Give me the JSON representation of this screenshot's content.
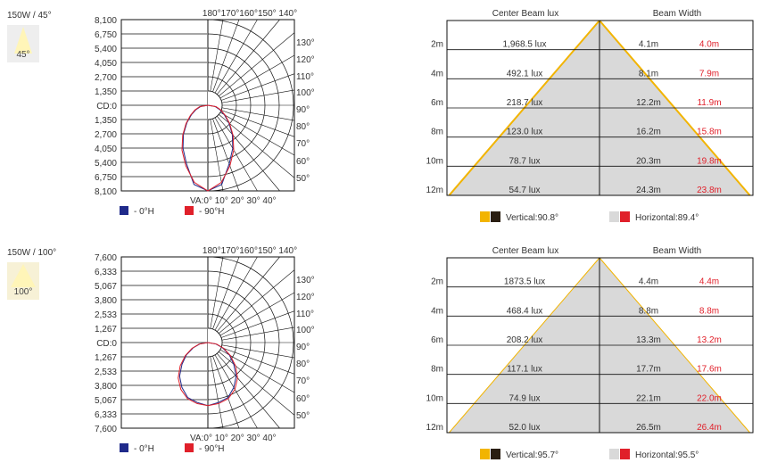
{
  "colors": {
    "series_0h": "#1f2a8a",
    "series_90h": "#e0202a",
    "vertical_line": "#f2b400",
    "vertical_swatch_dark": "#2a1e12",
    "horizontal_swatch_light": "#d9d9d9",
    "red_text": "#e0202a",
    "cone_fill": "#d9d9d9",
    "beam_icon_bg": "#f7f1d6",
    "beam_icon_hi": "#fff5b8"
  },
  "icons": [
    "beam-angle-icon",
    "legend-swatch"
  ],
  "panels": [
    {
      "title": "150W / 45°",
      "badge": "45°",
      "polar": {
        "intensity_labels": [
          "8,100",
          "6,750",
          "5,400",
          "4,050",
          "2,700",
          "1,350",
          "CD:0",
          "1,350",
          "2,700",
          "4,050",
          "5,400",
          "6,750",
          "8,100"
        ],
        "top_angle_label": "180°170°160°150° 140°",
        "right_angle_labels": [
          "130°",
          "120°",
          "110°",
          "100°",
          "90°",
          "80°",
          "70°",
          "60°",
          "50°"
        ],
        "bottom_angle_label": "VA:0°  10° 20° 30° 40°",
        "legend": [
          "- 0°H",
          "- 90°H"
        ]
      },
      "table": {
        "col_lux": "Center Beam lux",
        "col_width": "Beam Width",
        "rows": [
          {
            "dist": "2m",
            "lux": "1,968.5 lux",
            "vw": "4.1m",
            "hw": "4.0m"
          },
          {
            "dist": "4m",
            "lux": "492.1 lux",
            "vw": "8.1m",
            "hw": "7.9m"
          },
          {
            "dist": "6m",
            "lux": "218.7 lux",
            "vw": "12.2m",
            "hw": "11.9m"
          },
          {
            "dist": "8m",
            "lux": "123.0 lux",
            "vw": "16.2m",
            "hw": "15.8m"
          },
          {
            "dist": "10m",
            "lux": "78.7 lux",
            "vw": "20.3m",
            "hw": "19.8m"
          },
          {
            "dist": "12m",
            "lux": "54.7 lux",
            "vw": "24.3m",
            "hw": "23.8m"
          }
        ],
        "legend_vertical": "Vertical:90.8°",
        "legend_horizontal": "Horizontal:89.4°"
      }
    },
    {
      "title": "150W / 100°",
      "badge": "100°",
      "polar": {
        "intensity_labels": [
          "7,600",
          "6,333",
          "5,067",
          "3,800",
          "2,533",
          "1,267",
          "CD:0",
          "1,267",
          "2,533",
          "3,800",
          "5,067",
          "6,333",
          "7,600"
        ],
        "top_angle_label": "180°170°160°150° 140°",
        "right_angle_labels": [
          "130°",
          "120°",
          "110°",
          "100°",
          "90°",
          "80°",
          "70°",
          "60°",
          "50°"
        ],
        "bottom_angle_label": "VA:0°  10° 20° 30° 40°",
        "legend": [
          "- 0°H",
          "- 90°H"
        ]
      },
      "table": {
        "col_lux": "Center Beam lux",
        "col_width": "Beam Width",
        "rows": [
          {
            "dist": "2m",
            "lux": "1873.5 lux",
            "vw": "4.4m",
            "hw": "4.4m"
          },
          {
            "dist": "4m",
            "lux": "468.4 lux",
            "vw": "8.8m",
            "hw": "8.8m"
          },
          {
            "dist": "6m",
            "lux": "208.2 lux",
            "vw": "13.3m",
            "hw": "13.2m"
          },
          {
            "dist": "8m",
            "lux": "117.1 lux",
            "vw": "17.7m",
            "hw": "17.6m"
          },
          {
            "dist": "10m",
            "lux": "74.9 lux",
            "vw": "22.1m",
            "hw": "22.0m"
          },
          {
            "dist": "12m",
            "lux": "52.0 lux",
            "vw": "26.5m",
            "hw": "26.4m"
          }
        ],
        "legend_vertical": "Vertical:95.7°",
        "legend_horizontal": "Horizontal:95.5°"
      }
    }
  ],
  "chart_data": [
    {
      "type": "polar",
      "title": "150W / 45°",
      "rlim": [
        0,
        8100
      ],
      "series": [
        {
          "name": "0°H",
          "angles_deg": [
            0,
            10,
            20,
            30,
            40,
            50,
            60,
            70,
            80,
            90
          ],
          "values": [
            8100,
            7600,
            5900,
            4700,
            3600,
            2600,
            1800,
            1200,
            700,
            0
          ]
        },
        {
          "name": "90°H",
          "angles_deg": [
            0,
            10,
            20,
            30,
            40,
            50,
            60,
            70,
            80,
            90
          ],
          "values": [
            8100,
            7400,
            6100,
            4900,
            3700,
            2700,
            1900,
            1300,
            800,
            0
          ]
        }
      ]
    },
    {
      "type": "table",
      "title": "150W / 45°",
      "columns": [
        "Distance",
        "Center Beam lux",
        "Beam Width (vertical)",
        "Beam Width (horizontal)"
      ],
      "distances_m": [
        2,
        4,
        6,
        8,
        10,
        12
      ],
      "center_beam_lux": [
        1968.5,
        492.1,
        218.7,
        123.0,
        78.7,
        54.7
      ],
      "beam_width_vertical_m": [
        4.1,
        8.1,
        12.2,
        16.2,
        20.3,
        24.3
      ],
      "beam_width_horizontal_m": [
        4.0,
        7.9,
        11.9,
        15.8,
        19.8,
        23.8
      ],
      "vertical_angle_deg": 90.8,
      "horizontal_angle_deg": 89.4
    },
    {
      "type": "polar",
      "title": "150W / 100°",
      "rlim": [
        0,
        7600
      ],
      "series": [
        {
          "name": "0°H",
          "angles_deg": [
            0,
            10,
            20,
            30,
            40,
            50,
            60,
            70,
            80,
            90
          ],
          "values": [
            5600,
            5400,
            5200,
            4600,
            3900,
            3000,
            2200,
            1400,
            700,
            0
          ]
        },
        {
          "name": "90°H",
          "angles_deg": [
            0,
            10,
            20,
            30,
            40,
            50,
            60,
            70,
            80,
            90
          ],
          "values": [
            5600,
            5500,
            5300,
            4800,
            4100,
            3200,
            2300,
            1500,
            800,
            0
          ]
        }
      ]
    },
    {
      "type": "table",
      "title": "150W / 100°",
      "columns": [
        "Distance",
        "Center Beam lux",
        "Beam Width (vertical)",
        "Beam Width (horizontal)"
      ],
      "distances_m": [
        2,
        4,
        6,
        8,
        10,
        12
      ],
      "center_beam_lux": [
        1873.5,
        468.4,
        208.2,
        117.1,
        74.9,
        52.0
      ],
      "beam_width_vertical_m": [
        4.4,
        8.8,
        13.3,
        17.7,
        22.1,
        26.5
      ],
      "beam_width_horizontal_m": [
        4.4,
        8.8,
        13.2,
        17.6,
        22.0,
        26.4
      ],
      "vertical_angle_deg": 95.7,
      "horizontal_angle_deg": 95.5
    }
  ]
}
